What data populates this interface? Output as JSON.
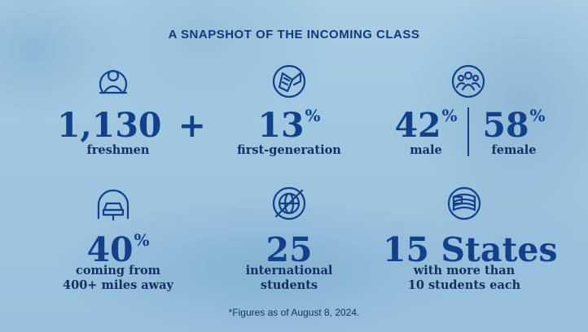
{
  "title": "A SNAPSHOT OF THE INCOMING CLASS",
  "stats": {
    "freshmen": {
      "value": "1,130",
      "suffix": "+",
      "label": "freshmen",
      "icon": "person-icon"
    },
    "first_generation": {
      "value": "13",
      "suffix": "%",
      "label": "first-generation",
      "icon": "diploma-icon"
    },
    "male": {
      "value": "42",
      "suffix": "%",
      "label": "male"
    },
    "female": {
      "value": "58",
      "suffix": "%",
      "label": "female"
    },
    "gender_icon": "group-icon",
    "distance": {
      "value": "40",
      "suffix": "%",
      "label_line1": "coming from",
      "label_line2": "400+ miles away",
      "icon": "car-icon"
    },
    "international": {
      "value": "25",
      "label_line1": "international",
      "label_line2": "students",
      "icon": "globe-icon"
    },
    "states": {
      "value": "15 States",
      "label_line1": "with more than",
      "label_line2": "10 students each",
      "icon": "flag-icon"
    }
  },
  "footnote": "*Figures as of August 8, 2024.",
  "colors": {
    "primary": "#12408a",
    "text": "#12305f",
    "background": "#a9cde4"
  }
}
